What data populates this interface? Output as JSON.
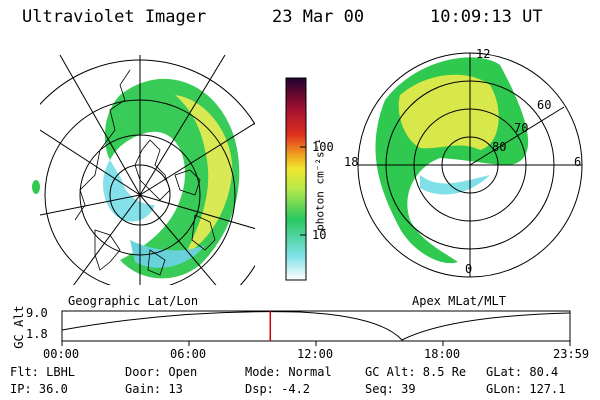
{
  "header": {
    "instrument": "Ultraviolet Imager",
    "date": "23 Mar 00",
    "time": "10:09:13 UT"
  },
  "colorbar": {
    "label": "photon cm⁻²s⁻¹",
    "ticks": [
      "100",
      "10"
    ]
  },
  "left_map": {
    "caption": "Geographic Lat/Lon"
  },
  "right_map": {
    "caption": "Apex MLat/MLT",
    "mlt_labels": [
      "12",
      "18",
      "6",
      "0"
    ],
    "lat_labels": [
      "60",
      "70",
      "80"
    ]
  },
  "altitude_plot": {
    "ylabel": "GC Alt",
    "y_ticks": [
      "9.0",
      "1.8"
    ],
    "x_ticks": [
      "00:00",
      "06:00",
      "12:00",
      "18:00",
      "23:59"
    ],
    "current_time_fraction": 0.41
  },
  "status": {
    "filter": "Flt: LBHL",
    "door": "Door: Open",
    "mode": "Mode: Normal",
    "gc_alt": "GC Alt: 8.5 Re",
    "glat": "GLat: 80.4",
    "ip": "IP: 36.0",
    "gain": "Gain: 13",
    "dsp": "Dsp:   -4.2",
    "seq": "Seq: 39",
    "glon": "GLon: 127.1"
  },
  "colors": {
    "aurora_green": "#2fc94f",
    "aurora_yellow": "#d8e84a",
    "aurora_cyan": "#5fd0d8",
    "marker_red": "#cc0000"
  }
}
